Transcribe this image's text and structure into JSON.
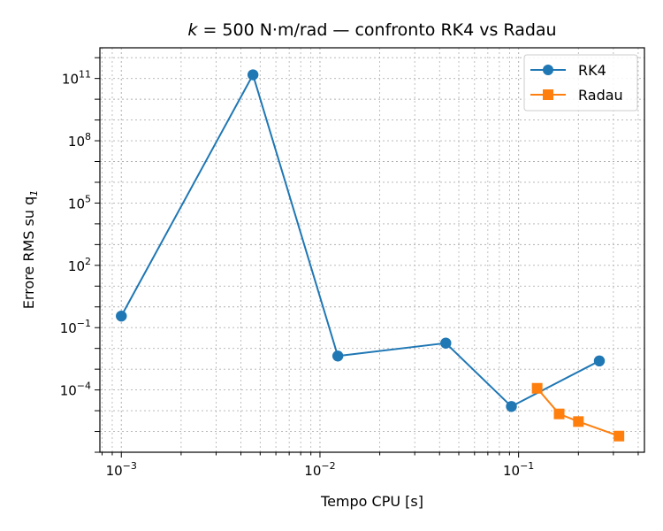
{
  "chart_data": {
    "type": "line",
    "title": "k = 500 N·m/rad — confronto RK4 vs Radau",
    "title_parts": {
      "k": "k",
      "rest": " = 500 N·m/rad — confronto RK4 vs Radau"
    },
    "xlabel": "Tempo CPU [s]",
    "ylabel": "Errore RMS su q",
    "ylabel_sub": "1",
    "xscale": "log",
    "yscale": "log",
    "xlim": [
      0.00078,
      0.43
    ],
    "ylim": [
      1e-07,
      3000000000000.0
    ],
    "xticks": [
      {
        "value": 0.001,
        "base": "10",
        "exp": "−3"
      },
      {
        "value": 0.01,
        "base": "10",
        "exp": "−2"
      },
      {
        "value": 0.1,
        "base": "10",
        "exp": "−1"
      }
    ],
    "yticks": [
      {
        "value": 0.0001,
        "base": "10",
        "exp": "−4"
      },
      {
        "value": 0.1,
        "base": "10",
        "exp": "−1"
      },
      {
        "value": 100.0,
        "base": "10",
        "exp": "2"
      },
      {
        "value": 100000.0,
        "base": "10",
        "exp": "5"
      },
      {
        "value": 100000000.0,
        "base": "10",
        "exp": "8"
      },
      {
        "value": 100000000000.0,
        "base": "10",
        "exp": "11"
      }
    ],
    "grid": true,
    "legend_position": "top-right",
    "series": [
      {
        "name": "RK4",
        "color": "#1f77b4",
        "marker": "circle",
        "x": [
          0.001,
          0.0046,
          0.0123,
          0.043,
          0.092,
          0.255
        ],
        "y": [
          0.36,
          150000000000.0,
          0.0043,
          0.018,
          1.6e-05,
          0.0025
        ]
      },
      {
        "name": "Radau",
        "color": "#ff7f0e",
        "marker": "square",
        "x": [
          0.124,
          0.16,
          0.2,
          0.32
        ],
        "y": [
          0.00012,
          7e-06,
          3e-06,
          6e-07
        ]
      }
    ]
  }
}
